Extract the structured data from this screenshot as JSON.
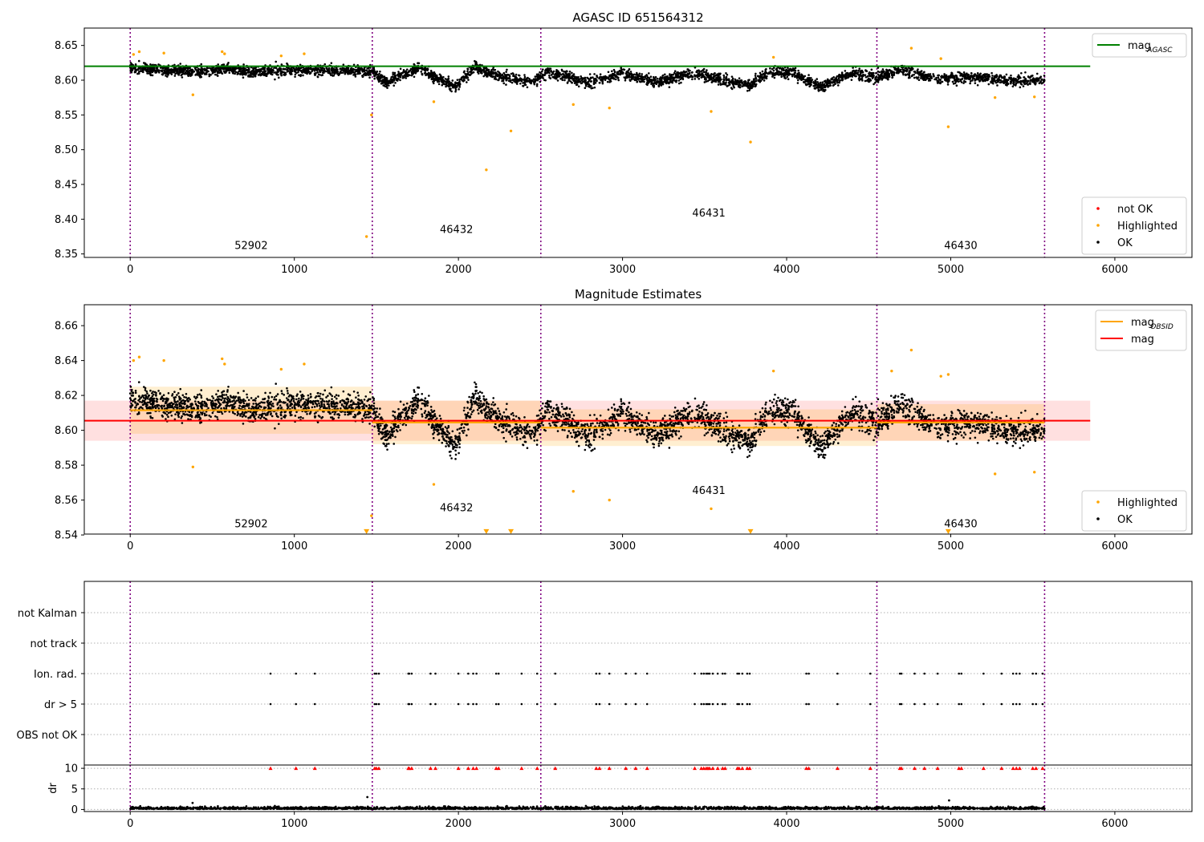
{
  "chart_data": [
    {
      "type": "scatter",
      "title": "AGASC ID 651564312",
      "xlabel": "",
      "ylabel": "",
      "xlim": [
        -280,
        6470
      ],
      "ylim": [
        8.345,
        8.675
      ],
      "xticks": [
        0,
        1000,
        2000,
        3000,
        4000,
        5000,
        6000
      ],
      "xtick_labels": [
        "0",
        "1000",
        "2000",
        "3000",
        "4000",
        "5000",
        "6000"
      ],
      "yticks": [
        8.35,
        8.4,
        8.45,
        8.5,
        8.55,
        8.6,
        8.65
      ],
      "ytick_labels": [
        "8.35",
        "8.40",
        "8.45",
        "8.50",
        "8.55",
        "8.60",
        "8.65"
      ],
      "grid": false,
      "obsid_boundaries": [
        0,
        1475,
        2502,
        4550,
        5572
      ],
      "obsid_labels": [
        {
          "text": "52902",
          "x": 737,
          "y": 8.357
        },
        {
          "text": "46432",
          "x": 1988,
          "y": 8.38
        },
        {
          "text": "46431",
          "x": 3526,
          "y": 8.404
        },
        {
          "text": "46430",
          "x": 5061,
          "y": 8.357
        }
      ],
      "reference_line": {
        "name": "mag_AGASC",
        "legend": "mag",
        "legend_sub": "AGASC",
        "y": 8.62,
        "x_range": [
          -280,
          5850
        ],
        "color": "#008000"
      },
      "bulk_series": {
        "name": "OK",
        "color": "#000000",
        "count": 4200,
        "x_range": [
          0,
          5572
        ],
        "band": [
          8.575,
          8.635
        ],
        "description_free": true
      },
      "bulk_profile": [
        {
          "x": 0,
          "y": 8.618
        },
        {
          "x": 250,
          "y": 8.614
        },
        {
          "x": 500,
          "y": 8.613
        },
        {
          "x": 600,
          "y": 8.618
        },
        {
          "x": 700,
          "y": 8.611
        },
        {
          "x": 1000,
          "y": 8.615
        },
        {
          "x": 1300,
          "y": 8.614
        },
        {
          "x": 1475,
          "y": 8.612
        },
        {
          "x": 1560,
          "y": 8.596
        },
        {
          "x": 1750,
          "y": 8.618
        },
        {
          "x": 1900,
          "y": 8.6
        },
        {
          "x": 1980,
          "y": 8.59
        },
        {
          "x": 2100,
          "y": 8.62
        },
        {
          "x": 2250,
          "y": 8.605
        },
        {
          "x": 2450,
          "y": 8.598
        },
        {
          "x": 2550,
          "y": 8.612
        },
        {
          "x": 2800,
          "y": 8.596
        },
        {
          "x": 3000,
          "y": 8.61
        },
        {
          "x": 3200,
          "y": 8.598
        },
        {
          "x": 3450,
          "y": 8.61
        },
        {
          "x": 3600,
          "y": 8.6
        },
        {
          "x": 3780,
          "y": 8.594
        },
        {
          "x": 3900,
          "y": 8.612
        },
        {
          "x": 4050,
          "y": 8.61
        },
        {
          "x": 4200,
          "y": 8.59
        },
        {
          "x": 4400,
          "y": 8.61
        },
        {
          "x": 4550,
          "y": 8.604
        },
        {
          "x": 4700,
          "y": 8.615
        },
        {
          "x": 4900,
          "y": 8.602
        },
        {
          "x": 5100,
          "y": 8.605
        },
        {
          "x": 5350,
          "y": 8.6
        },
        {
          "x": 5572,
          "y": 8.6
        }
      ],
      "series": [
        {
          "name": "not OK",
          "color": "#ff0000",
          "points": []
        },
        {
          "name": "Highlighted",
          "color": "#ffa500",
          "points": [
            {
              "x": 20,
              "y": 8.637
            },
            {
              "x": 55,
              "y": 8.641
            },
            {
              "x": 205,
              "y": 8.639
            },
            {
              "x": 382,
              "y": 8.579
            },
            {
              "x": 560,
              "y": 8.641
            },
            {
              "x": 575,
              "y": 8.638
            },
            {
              "x": 920,
              "y": 8.635
            },
            {
              "x": 1060,
              "y": 8.638
            },
            {
              "x": 1440,
              "y": 8.375
            },
            {
              "x": 1470,
              "y": 8.55
            },
            {
              "x": 1850,
              "y": 8.569
            },
            {
              "x": 2170,
              "y": 8.471
            },
            {
              "x": 2320,
              "y": 8.527
            },
            {
              "x": 2700,
              "y": 8.565
            },
            {
              "x": 2920,
              "y": 8.56
            },
            {
              "x": 3540,
              "y": 8.555
            },
            {
              "x": 3780,
              "y": 8.511
            },
            {
              "x": 3920,
              "y": 8.633
            },
            {
              "x": 4760,
              "y": 8.646
            },
            {
              "x": 4940,
              "y": 8.631
            },
            {
              "x": 4985,
              "y": 8.533
            },
            {
              "x": 5270,
              "y": 8.575
            },
            {
              "x": 5510,
              "y": 8.576
            }
          ]
        }
      ],
      "legends": [
        {
          "position": "upper-right",
          "entries": [
            {
              "label": "mag",
              "sub": "AGASC",
              "kind": "line",
              "color": "#008000"
            }
          ]
        },
        {
          "position": "lower-right",
          "entries": [
            {
              "label": "not OK",
              "kind": "marker",
              "color": "#ff0000"
            },
            {
              "label": "Highlighted",
              "kind": "marker",
              "color": "#ffa500"
            },
            {
              "label": "OK",
              "kind": "marker",
              "color": "#000000"
            }
          ]
        }
      ]
    },
    {
      "type": "scatter",
      "title": "Magnitude Estimates",
      "xlabel": "",
      "ylabel": "",
      "xlim": [
        -280,
        6470
      ],
      "ylim": [
        8.5405,
        8.672
      ],
      "xticks": [
        0,
        1000,
        2000,
        3000,
        4000,
        5000,
        6000
      ],
      "xtick_labels": [
        "0",
        "1000",
        "2000",
        "3000",
        "4000",
        "5000",
        "6000"
      ],
      "yticks": [
        8.54,
        8.56,
        8.58,
        8.6,
        8.62,
        8.64,
        8.66
      ],
      "ytick_labels": [
        "8.54",
        "8.56",
        "8.58",
        "8.60",
        "8.62",
        "8.64",
        "8.66"
      ],
      "grid": false,
      "obsid_boundaries": [
        0,
        1475,
        2502,
        4550,
        5572
      ],
      "obsid_labels": [
        {
          "text": "52902",
          "x": 737,
          "y": 8.5445
        },
        {
          "text": "46432",
          "x": 1988,
          "y": 8.5535
        },
        {
          "text": "46431",
          "x": 3526,
          "y": 8.5635
        },
        {
          "text": "46430",
          "x": 5061,
          "y": 8.5445
        }
      ],
      "mag": {
        "name": "mag",
        "y": 8.6055,
        "band": [
          8.594,
          8.617
        ],
        "x_range": [
          -280,
          5850
        ],
        "color": "#ff0000"
      },
      "mag_obsid": [
        {
          "x0": 0,
          "x1": 1475,
          "y": 8.6115,
          "band": [
            8.598,
            8.625
          ]
        },
        {
          "x0": 1475,
          "x1": 2502,
          "y": 8.6045,
          "band": [
            8.592,
            8.617
          ]
        },
        {
          "x0": 2502,
          "x1": 4550,
          "y": 8.6015,
          "band": [
            8.591,
            8.612
          ]
        },
        {
          "x0": 4550,
          "x1": 5572,
          "y": 8.6045,
          "band": [
            8.594,
            8.615
          ]
        }
      ],
      "bulk_series": {
        "name": "OK",
        "color": "#000000",
        "count": 4200,
        "x_range": [
          0,
          5572
        ]
      },
      "series": [
        {
          "name": "Highlighted",
          "color": "#ffa500",
          "points": [
            {
              "x": 20,
              "y": 8.64
            },
            {
              "x": 55,
              "y": 8.642
            },
            {
              "x": 205,
              "y": 8.64
            },
            {
              "x": 382,
              "y": 8.579
            },
            {
              "x": 560,
              "y": 8.641
            },
            {
              "x": 575,
              "y": 8.638
            },
            {
              "x": 920,
              "y": 8.635
            },
            {
              "x": 1060,
              "y": 8.638
            },
            {
              "x": 1470,
              "y": 8.551
            },
            {
              "x": 1850,
              "y": 8.569
            },
            {
              "x": 2700,
              "y": 8.565
            },
            {
              "x": 2920,
              "y": 8.56
            },
            {
              "x": 3540,
              "y": 8.555
            },
            {
              "x": 3920,
              "y": 8.634
            },
            {
              "x": 4640,
              "y": 8.634
            },
            {
              "x": 4760,
              "y": 8.646
            },
            {
              "x": 4940,
              "y": 8.631
            },
            {
              "x": 4985,
              "y": 8.632
            },
            {
              "x": 5270,
              "y": 8.575
            },
            {
              "x": 5510,
              "y": 8.576
            }
          ]
        },
        {
          "name": "Highlighted (below range)",
          "color": "#ffa500",
          "marker": "triangle-down",
          "points": [
            {
              "x": 1440,
              "y": 8.541
            },
            {
              "x": 2170,
              "y": 8.541
            },
            {
              "x": 2320,
              "y": 8.541
            },
            {
              "x": 3780,
              "y": 8.541
            },
            {
              "x": 4985,
              "y": 8.541
            }
          ]
        }
      ],
      "legends": [
        {
          "position": "upper-right",
          "entries": [
            {
              "label": "mag",
              "sub": "OBSID",
              "kind": "line",
              "color": "#ffa500"
            },
            {
              "label": "mag",
              "kind": "line",
              "color": "#ff0000"
            }
          ]
        },
        {
          "position": "lower-right",
          "entries": [
            {
              "label": "Highlighted",
              "kind": "marker",
              "color": "#ffa500"
            },
            {
              "label": "OK",
              "kind": "marker",
              "color": "#000000"
            }
          ]
        }
      ]
    },
    {
      "type": "scatter",
      "title": "",
      "xlabel": "",
      "ylabel": "",
      "xlim": [
        -280,
        6470
      ],
      "categories": [
        "not Kalman",
        "not track",
        "Ion. rad.",
        "dr > 5",
        "OBS not OK"
      ],
      "grid": true,
      "obsid_boundaries": [
        0,
        1475,
        2502,
        4550,
        5572
      ],
      "flag_times": [
        855,
        1010,
        1125,
        1490,
        1500,
        1515,
        1695,
        1700,
        1715,
        1830,
        1860,
        2000,
        2060,
        2090,
        2110,
        2230,
        2245,
        2385,
        2480,
        2590,
        2840,
        2860,
        2920,
        3020,
        3080,
        3150,
        3440,
        3480,
        3495,
        3510,
        3520,
        3530,
        3550,
        3580,
        3610,
        3625,
        3700,
        3710,
        3730,
        3760,
        3775,
        4120,
        4135,
        4310,
        4510,
        4690,
        4700,
        4780,
        4840,
        4920,
        5050,
        5065,
        5200,
        5310,
        5380,
        5400,
        5420,
        5500,
        5520,
        5560
      ],
      "series": [
        {
          "name": "Ion. rad.",
          "color": "#000000"
        },
        {
          "name": "dr > 5",
          "color": "#000000"
        }
      ]
    },
    {
      "type": "scatter",
      "title": "",
      "xlabel": "",
      "ylabel": "dr",
      "xlim": [
        -280,
        6470
      ],
      "ylim": [
        -0.5,
        10.8
      ],
      "yticks": [
        0,
        5,
        10
      ],
      "ytick_labels": [
        "0",
        "5",
        "10"
      ],
      "xticks": [
        0,
        1000,
        2000,
        3000,
        4000,
        5000,
        6000
      ],
      "xtick_labels": [
        "0",
        "1000",
        "2000",
        "3000",
        "4000",
        "5000",
        "6000"
      ],
      "grid": true,
      "obsid_boundaries": [
        0,
        1475,
        2502,
        4550,
        5572
      ],
      "clipped_marker_y": 10,
      "clipped_color": "#ff0000",
      "bulk_series": {
        "name": "dr",
        "color": "#000000",
        "count": 2800,
        "x_range": [
          0,
          5572
        ],
        "band": [
          0.1,
          1.3
        ]
      },
      "outliers": [
        {
          "x": 1445,
          "y": 3.0
        },
        {
          "x": 4990,
          "y": 2.2
        },
        {
          "x": 380,
          "y": 1.6
        }
      ]
    }
  ]
}
